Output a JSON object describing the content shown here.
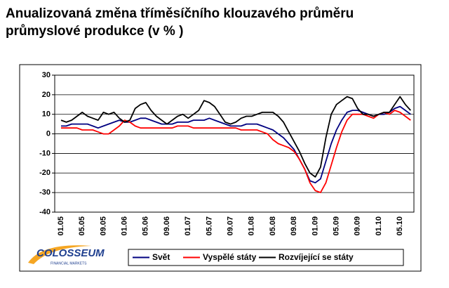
{
  "chart_data": {
    "type": "line",
    "title": [
      "Anualizovaná změna tříměsíčního klouzavého průměru",
      "průmyslové produkce (v % )"
    ],
    "logo": {
      "name": "COLOSSEUM",
      "subtitle": "FINANCIAL MARKETS"
    },
    "categories": [
      "01.05",
      null,
      null,
      null,
      "05.05",
      null,
      null,
      null,
      "09.05",
      null,
      null,
      null,
      "01.06",
      null,
      null,
      null,
      "05.06",
      null,
      null,
      null,
      "09.06",
      null,
      null,
      null,
      "01.07",
      null,
      null,
      null,
      "05.07",
      null,
      null,
      null,
      "09.07",
      null,
      null,
      null,
      "01.08",
      null,
      null,
      null,
      "05.08",
      null,
      null,
      null,
      "09.08",
      null,
      null,
      null,
      "01.09",
      null,
      null,
      null,
      "05.09",
      null,
      null,
      null,
      "09.09",
      null,
      null,
      null,
      "01.10",
      null,
      null,
      null,
      "05.10",
      null,
      null
    ],
    "series": [
      {
        "name": "Svět",
        "color": "#000080",
        "values": [
          4,
          4,
          5,
          5,
          5,
          5,
          4,
          3,
          4,
          5,
          6,
          7,
          6,
          6,
          7,
          8,
          8,
          7,
          6,
          5,
          5,
          5,
          6,
          6,
          6,
          7,
          7,
          7,
          8,
          7,
          6,
          5,
          4,
          4,
          4,
          5,
          5,
          5,
          4,
          3,
          2,
          0,
          -2,
          -5,
          -8,
          -13,
          -18,
          -24,
          -25,
          -23,
          -14,
          -5,
          2,
          7,
          11,
          12,
          12,
          11,
          10,
          9,
          10,
          10,
          11,
          13,
          14,
          12,
          10
        ]
      },
      {
        "name": "Vyspělé státy",
        "color": "#ff0000",
        "values": [
          3,
          3,
          3,
          3,
          2,
          2,
          2,
          1,
          0,
          0,
          2,
          4,
          7,
          6,
          4,
          3,
          3,
          3,
          3,
          3,
          3,
          3,
          4,
          4,
          4,
          3,
          3,
          3,
          3,
          3,
          3,
          3,
          3,
          3,
          2,
          2,
          2,
          2,
          1,
          0,
          -3,
          -5,
          -6,
          -7,
          -9,
          -13,
          -18,
          -25,
          -29,
          -30,
          -25,
          -16,
          -7,
          1,
          7,
          10,
          10,
          10,
          9,
          8,
          10,
          11,
          10,
          12,
          11,
          9,
          7
        ]
      },
      {
        "name": "Rozvíjející se státy",
        "color": "#000000",
        "values": [
          7,
          6,
          7,
          9,
          11,
          9,
          8,
          7,
          11,
          10,
          11,
          8,
          6,
          7,
          13,
          15,
          16,
          12,
          9,
          7,
          5,
          7,
          9,
          10,
          8,
          10,
          12,
          17,
          16,
          14,
          10,
          6,
          5,
          6,
          8,
          9,
          9,
          10,
          11,
          11,
          11,
          9,
          6,
          1,
          -4,
          -9,
          -15,
          -20,
          -22,
          -17,
          -2,
          10,
          15,
          17,
          19,
          18,
          13,
          10,
          10,
          9,
          10,
          11,
          11,
          15,
          19,
          15,
          12
        ]
      }
    ],
    "ylim": [
      -40,
      30
    ],
    "yticks": [
      -40,
      -30,
      -20,
      -10,
      0,
      10,
      20,
      30
    ],
    "grid": true,
    "legend": "bottom"
  }
}
